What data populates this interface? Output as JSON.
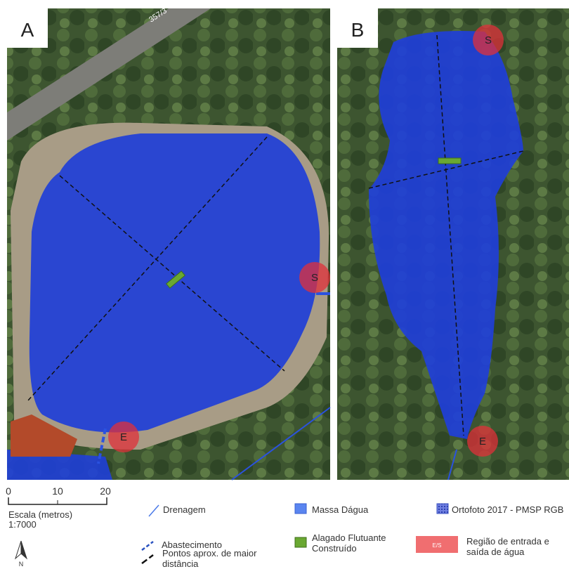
{
  "panels": [
    {
      "label": "A",
      "road_label": "357/3",
      "markers": [
        "S",
        "E"
      ]
    },
    {
      "label": "B",
      "markers": [
        "S",
        "E"
      ]
    }
  ],
  "scale": {
    "ticks": [
      0,
      10,
      20
    ],
    "title": "Escala (metros)",
    "ratio": "1:7000",
    "north": "N"
  },
  "legend": [
    {
      "label": "Drenagem"
    },
    {
      "label": "Abastecimento"
    },
    {
      "label": "Pontos aprox. de maior distância"
    },
    {
      "label": "Massa Dágua"
    },
    {
      "label": "Alagado Flutuante Construído"
    },
    {
      "label": "Ortofoto 2017 - PMSP RGB"
    },
    {
      "label": "Região de entrada e saída de água",
      "swatch_text": "E/S"
    }
  ]
}
